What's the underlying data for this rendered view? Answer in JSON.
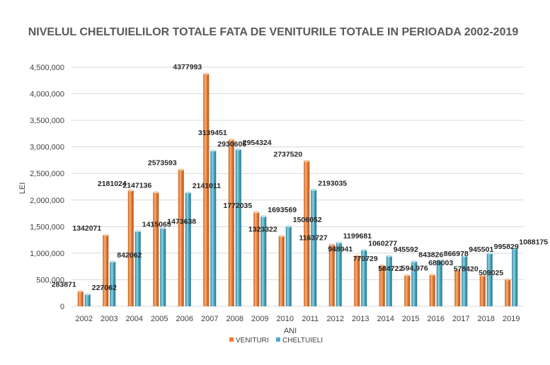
{
  "chart_data": {
    "type": "bar",
    "title": "NIVELUL  CHELTUIELILOR TOTALE FATA DE VENITURILE TOTALE IN PERIOADA 2002-2019",
    "xlabel": "ANI",
    "ylabel": "LEI",
    "ylim": [
      0,
      4500000
    ],
    "ytick_labels": [
      "0",
      "500,000",
      "1,000,000",
      "1,500,000",
      "2,000,000",
      "2,500,000",
      "3,000,000",
      "3,500,000",
      "4,000,000",
      "4,500,000"
    ],
    "categories": [
      "2002",
      "2003",
      "2004",
      "2005",
      "2006",
      "2007",
      "2008",
      "2009",
      "2010",
      "2011",
      "2012",
      "2013",
      "2014",
      "2015",
      "2016",
      "2017",
      "2018",
      "2019"
    ],
    "series": [
      {
        "name": "VENITURI",
        "color": "#ed7d31",
        "values": [
          283871,
          1342071,
          2181024,
          2147136,
          2573593,
          4377993,
          3139451,
          1772035,
          1323322,
          2737520,
          1163727,
          948941,
          770729,
          584722,
          594976,
          689003,
          578420,
          509025
        ],
        "labels": [
          "283871",
          "1342071",
          "2181024",
          "2147136",
          "2573593",
          "4377993",
          "3139451",
          "1772035",
          "1323322",
          "2737520",
          "1163727",
          "948941",
          "770729",
          "584722",
          "594,976",
          "689003",
          "578420",
          "509025"
        ]
      },
      {
        "name": "CHELTUIELI",
        "color": "#4bacc6",
        "values": [
          227062,
          842062,
          1415065,
          1473638,
          2141011,
          2930605,
          2954324,
          1693569,
          1506052,
          2193035,
          1199681,
          1060277,
          945592,
          843826,
          866978,
          945501,
          995829,
          1088175
        ],
        "labels": [
          "227062",
          "842062",
          "1415065",
          "1473638",
          "2141011",
          "2930605",
          "2954324",
          "1693569",
          "1506052",
          "2193035",
          "1199681",
          "1060277",
          "945592",
          "843826",
          "866978",
          "945501",
          "995829",
          "1088175"
        ]
      }
    ],
    "legend": "bottom",
    "grid": true
  }
}
